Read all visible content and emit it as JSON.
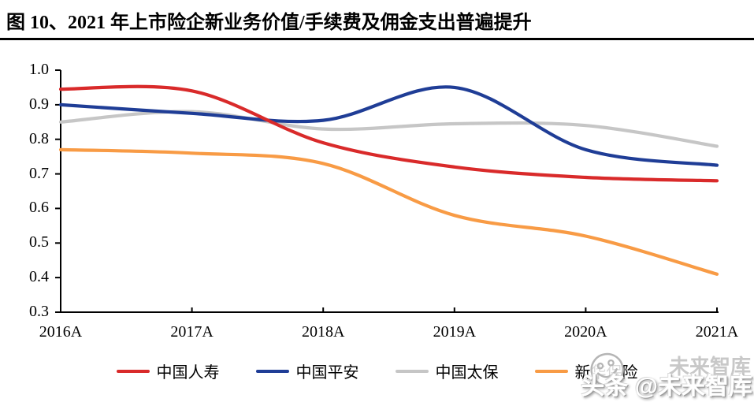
{
  "title": "图 10、2021 年上市险企新业务价值/手续费及佣金支出普遍提升",
  "watermark": {
    "ghost_text": "未来智库",
    "main_text": "头条 @未来智库",
    "logo": "smiley-face-icon"
  },
  "chart_data": {
    "type": "line",
    "categories": [
      "2016A",
      "2017A",
      "2018A",
      "2019A",
      "2020A",
      "2021A"
    ],
    "series": [
      {
        "name": "中国人寿",
        "color": "#D92A2A",
        "values": [
          0.945,
          0.94,
          0.79,
          0.72,
          0.69,
          0.68
        ]
      },
      {
        "name": "中国平安",
        "color": "#1F3D96",
        "values": [
          0.9,
          0.875,
          0.855,
          0.95,
          0.77,
          0.725
        ]
      },
      {
        "name": "中国太保",
        "color": "#C6C6C6",
        "values": [
          0.85,
          0.88,
          0.83,
          0.845,
          0.84,
          0.78
        ]
      },
      {
        "name": "新华保险",
        "color": "#F89B45",
        "values": [
          0.77,
          0.76,
          0.73,
          0.58,
          0.52,
          0.41
        ]
      }
    ],
    "ylim": [
      0.3,
      1.0
    ],
    "yticks": [
      "1.0",
      "0.9",
      "0.8",
      "0.7",
      "0.6",
      "0.5",
      "0.4",
      "0.3"
    ],
    "grid": false,
    "legend_position": "bottom",
    "axis_color": "#000000"
  }
}
